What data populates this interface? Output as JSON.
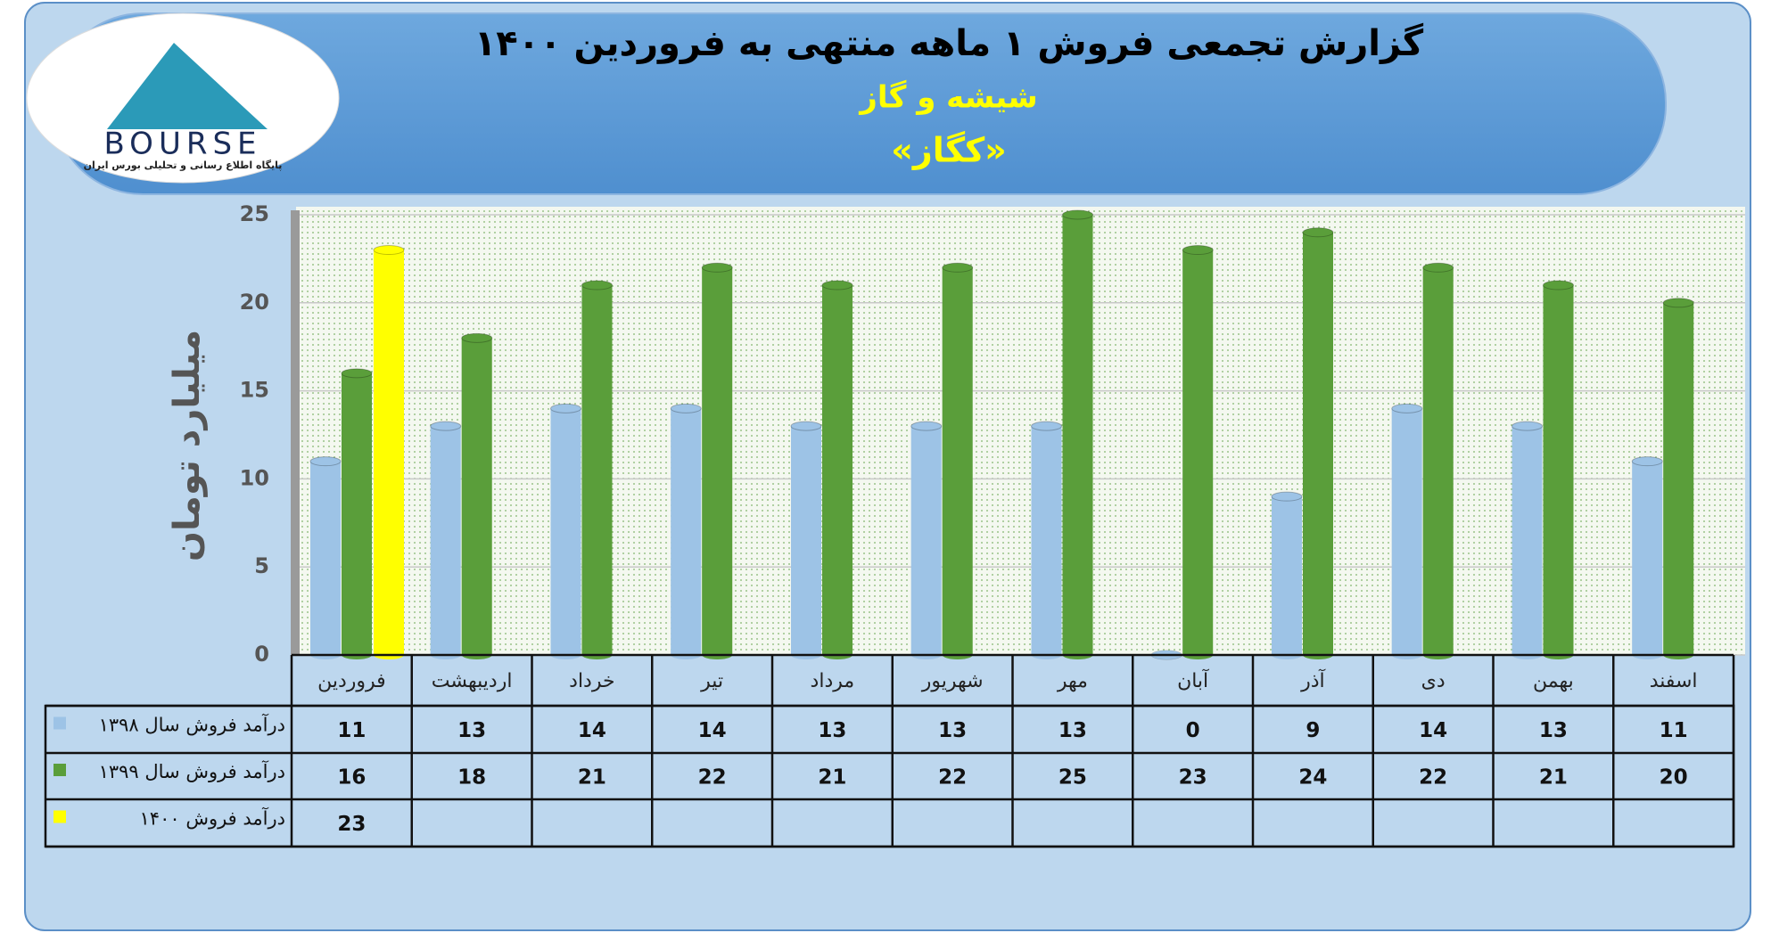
{
  "logo": {
    "name": "BOURSE",
    "tagline": "پایگاه اطلاع رسانی و تحلیلی بورس ایران"
  },
  "chart_data": {
    "type": "bar",
    "title": "گزارش تجمعی فروش ۱ ماهه منتهی به فروردین ۱۴۰۰",
    "subtitle": "شیشه و گاز",
    "company": "«کگاز»",
    "y_label": "میلیارد تومان",
    "categories": [
      "فروردین",
      "اردیبهشت",
      "خرداد",
      "تیر",
      "مرداد",
      "شهریور",
      "مهر",
      "آبان",
      "آذر",
      "دی",
      "بهمن",
      "اسفند"
    ],
    "series": [
      {
        "name": "درآمد فروش سال ۱۳۹۸",
        "color": "#9dc3e6",
        "values": [
          11,
          13,
          14,
          14,
          13,
          13,
          13,
          0,
          9,
          14,
          13,
          11
        ]
      },
      {
        "name": "درآمد فروش سال ۱۳۹۹",
        "color": "#5a9e3a",
        "values": [
          16,
          18,
          21,
          22,
          21,
          22,
          25,
          23,
          24,
          22,
          21,
          20
        ]
      },
      {
        "name": "درآمد فروش ۱۴۰۰",
        "color": "#ffff00",
        "values": [
          23,
          null,
          null,
          null,
          null,
          null,
          null,
          null,
          null,
          null,
          null,
          null
        ]
      }
    ],
    "ylim": [
      0,
      25
    ],
    "yticks": [
      0,
      5,
      10,
      15,
      20,
      25
    ],
    "grid": true
  }
}
